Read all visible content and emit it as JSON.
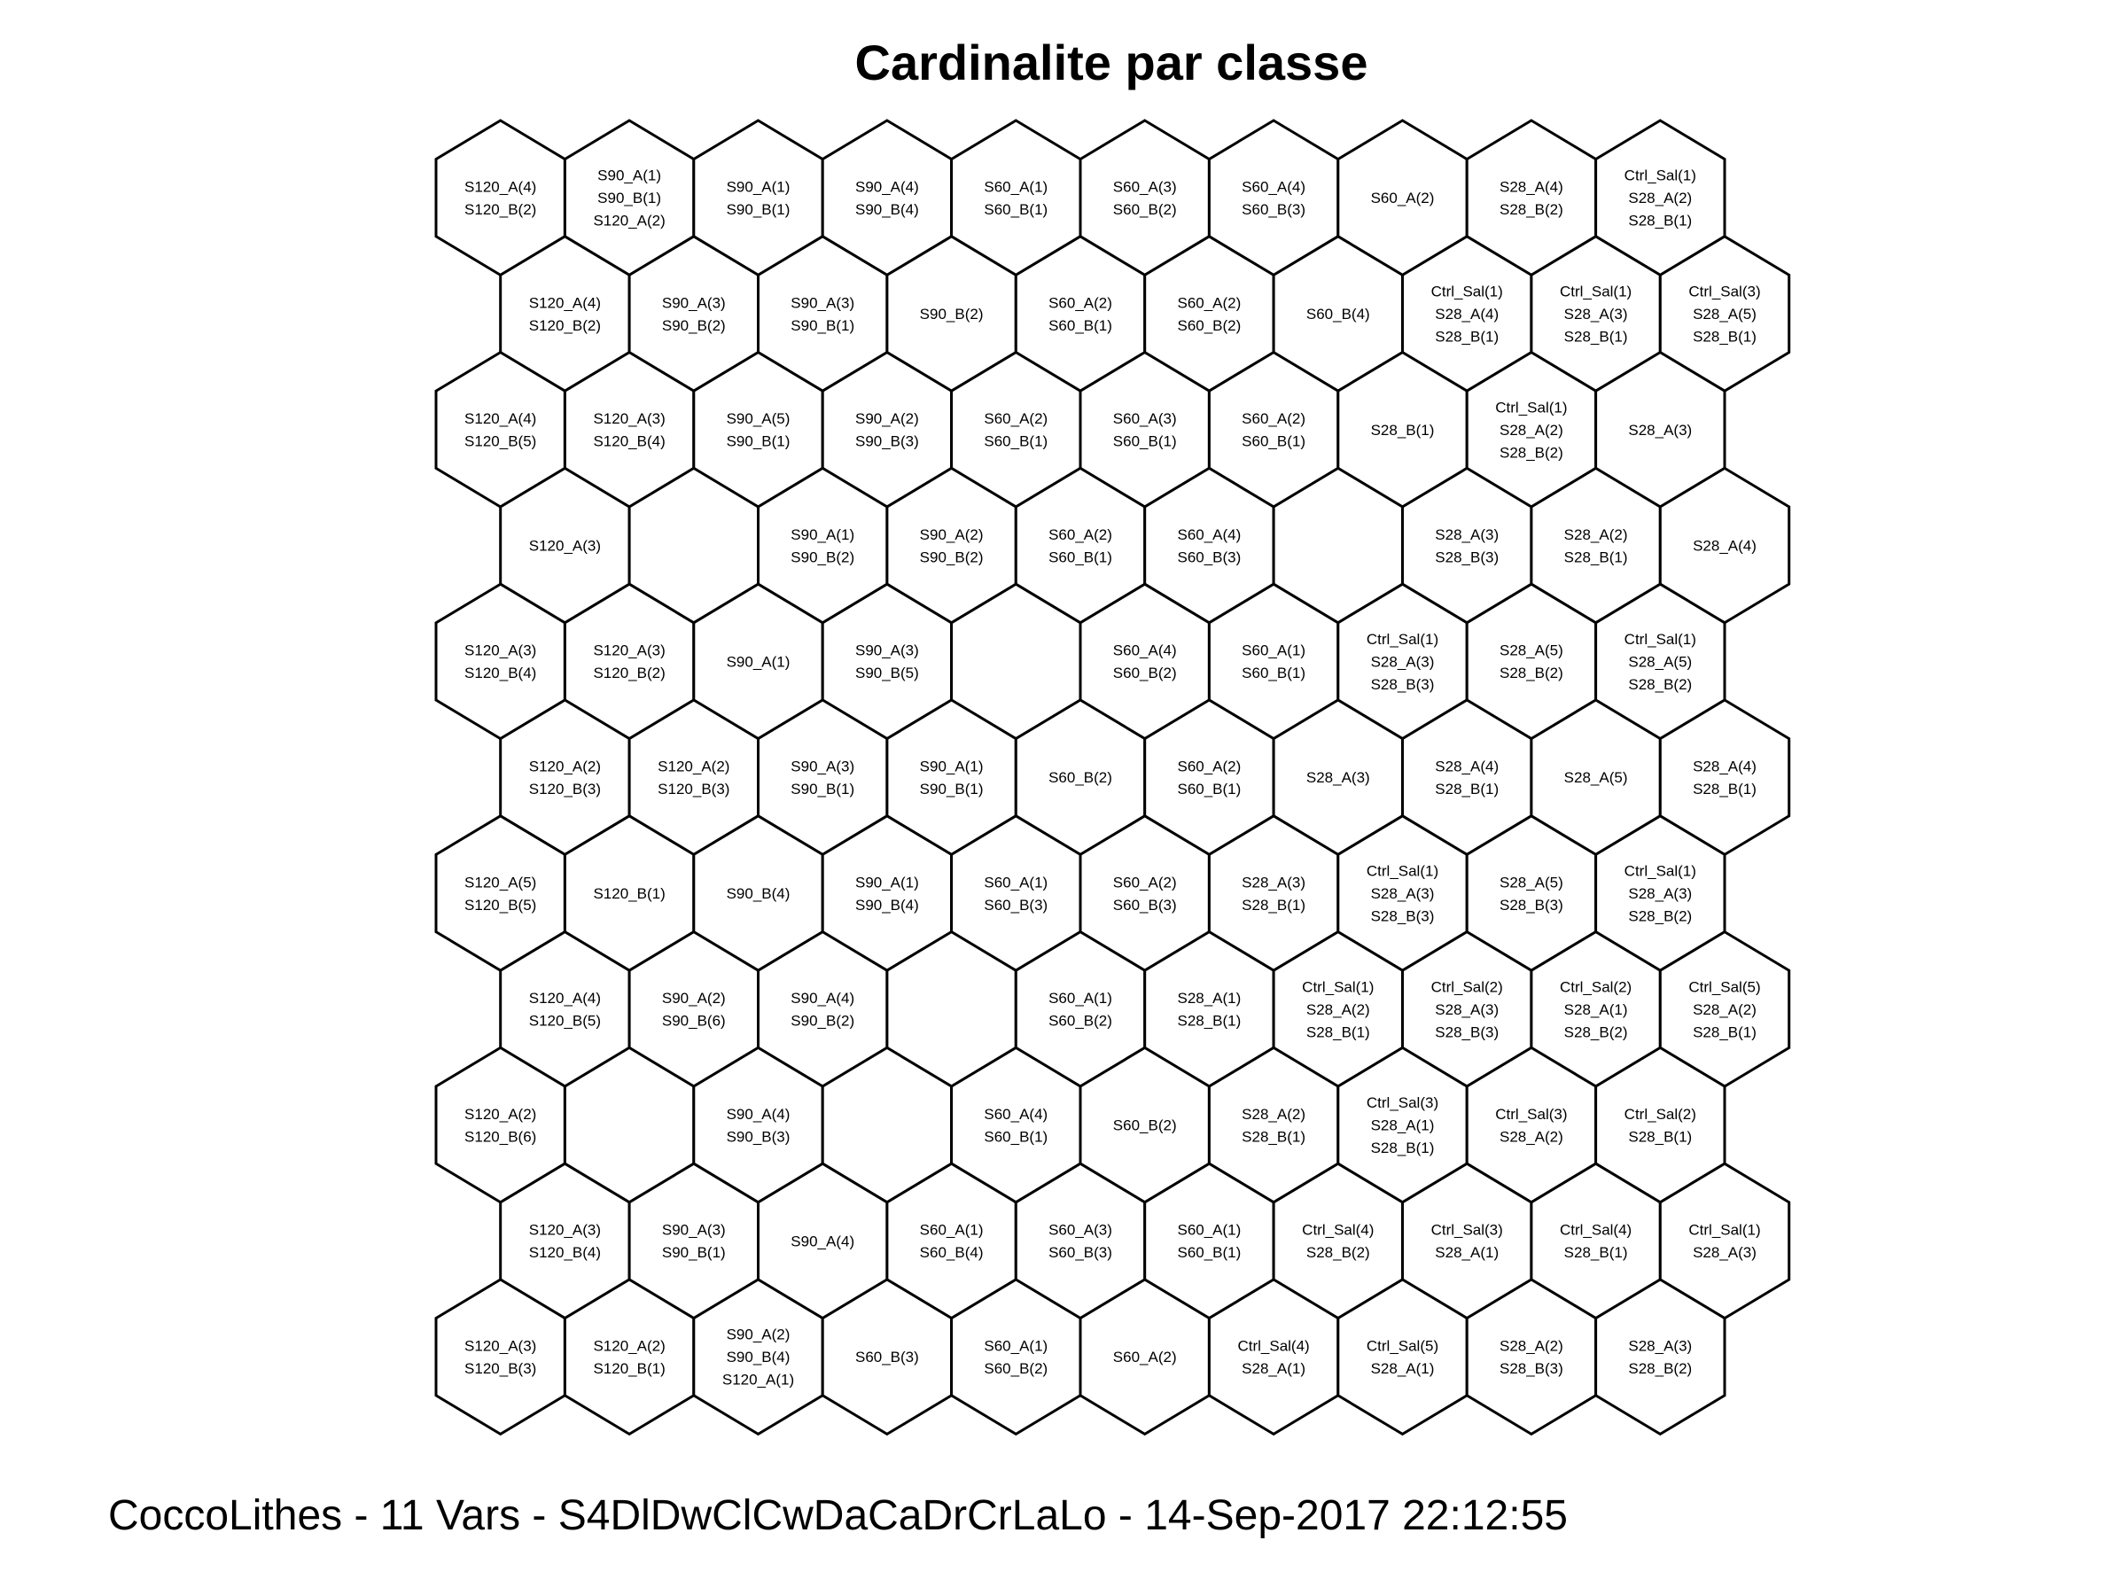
{
  "title": "Cardinalite par classe",
  "footer": "CoccoLithes - 11 Vars - S4DlDwClCwDaCaDrCrLaLo - 14-Sep-2017 22:12:55",
  "colors": {
    "stroke": "#000000",
    "fill": "#ffffff",
    "text": "#000000"
  },
  "grid": {
    "rows": 11,
    "cols": 10,
    "cells": [
      [
        [
          "S120_A(4)",
          "S120_B(2)"
        ],
        [
          "S90_A(1)",
          "S90_B(1)",
          "S120_A(2)"
        ],
        [
          "S90_A(1)",
          "S90_B(1)"
        ],
        [
          "S90_A(4)",
          "S90_B(4)"
        ],
        [
          "S60_A(1)",
          "S60_B(1)"
        ],
        [
          "S60_A(3)",
          "S60_B(2)"
        ],
        [
          "S60_A(4)",
          "S60_B(3)"
        ],
        [
          "S60_A(2)"
        ],
        [
          "S28_A(4)",
          "S28_B(2)"
        ],
        [
          "Ctrl_Sal(1)",
          "S28_A(2)",
          "S28_B(1)"
        ]
      ],
      [
        [
          "S120_A(4)",
          "S120_B(2)"
        ],
        [
          "S90_A(3)",
          "S90_B(2)"
        ],
        [
          "S90_A(3)",
          "S90_B(1)"
        ],
        [
          "S90_B(2)"
        ],
        [
          "S60_A(2)",
          "S60_B(1)"
        ],
        [
          "S60_A(2)",
          "S60_B(2)"
        ],
        [
          "S60_B(4)"
        ],
        [
          "Ctrl_Sal(1)",
          "S28_A(4)",
          "S28_B(1)"
        ],
        [
          "Ctrl_Sal(1)",
          "S28_A(3)",
          "S28_B(1)"
        ],
        [
          "Ctrl_Sal(3)",
          "S28_A(5)",
          "S28_B(1)"
        ]
      ],
      [
        [
          "S120_A(4)",
          "S120_B(5)"
        ],
        [
          "S120_A(3)",
          "S120_B(4)"
        ],
        [
          "S90_A(5)",
          "S90_B(1)"
        ],
        [
          "S90_A(2)",
          "S90_B(3)"
        ],
        [
          "S60_A(2)",
          "S60_B(1)"
        ],
        [
          "S60_A(3)",
          "S60_B(1)"
        ],
        [
          "S60_A(2)",
          "S60_B(1)"
        ],
        [
          "S28_B(1)"
        ],
        [
          "Ctrl_Sal(1)",
          "S28_A(2)",
          "S28_B(2)"
        ],
        [
          "S28_A(3)"
        ]
      ],
      [
        [
          "S120_A(3)"
        ],
        [],
        [
          "S90_A(1)",
          "S90_B(2)"
        ],
        [
          "S90_A(2)",
          "S90_B(2)"
        ],
        [
          "S60_A(2)",
          "S60_B(1)"
        ],
        [
          "S60_A(4)",
          "S60_B(3)"
        ],
        [],
        [
          "S28_A(3)",
          "S28_B(3)"
        ],
        [
          "S28_A(2)",
          "S28_B(1)"
        ],
        [
          "S28_A(4)"
        ]
      ],
      [
        [
          "S120_A(3)",
          "S120_B(4)"
        ],
        [
          "S120_A(3)",
          "S120_B(2)"
        ],
        [
          "S90_A(1)"
        ],
        [
          "S90_A(3)",
          "S90_B(5)"
        ],
        [],
        [
          "S60_A(4)",
          "S60_B(2)"
        ],
        [
          "S60_A(1)",
          "S60_B(1)"
        ],
        [
          "Ctrl_Sal(1)",
          "S28_A(3)",
          "S28_B(3)"
        ],
        [
          "S28_A(5)",
          "S28_B(2)"
        ],
        [
          "Ctrl_Sal(1)",
          "S28_A(5)",
          "S28_B(2)"
        ]
      ],
      [
        [
          "S120_A(2)",
          "S120_B(3)"
        ],
        [
          "S120_A(2)",
          "S120_B(3)"
        ],
        [
          "S90_A(3)",
          "S90_B(1)"
        ],
        [
          "S90_A(1)",
          "S90_B(1)"
        ],
        [
          "S60_B(2)"
        ],
        [
          "S60_A(2)",
          "S60_B(1)"
        ],
        [
          "S28_A(3)"
        ],
        [
          "S28_A(4)",
          "S28_B(1)"
        ],
        [
          "S28_A(5)"
        ],
        [
          "S28_A(4)",
          "S28_B(1)"
        ]
      ],
      [
        [
          "S120_A(5)",
          "S120_B(5)"
        ],
        [
          "S120_B(1)"
        ],
        [
          "S90_B(4)"
        ],
        [
          "S90_A(1)",
          "S90_B(4)"
        ],
        [
          "S60_A(1)",
          "S60_B(3)"
        ],
        [
          "S60_A(2)",
          "S60_B(3)"
        ],
        [
          "S28_A(3)",
          "S28_B(1)"
        ],
        [
          "Ctrl_Sal(1)",
          "S28_A(3)",
          "S28_B(3)"
        ],
        [
          "S28_A(5)",
          "S28_B(3)"
        ],
        [
          "Ctrl_Sal(1)",
          "S28_A(3)",
          "S28_B(2)"
        ]
      ],
      [
        [
          "S120_A(4)",
          "S120_B(5)"
        ],
        [
          "S90_A(2)",
          "S90_B(6)"
        ],
        [
          "S90_A(4)",
          "S90_B(2)"
        ],
        [],
        [
          "S60_A(1)",
          "S60_B(2)"
        ],
        [
          "S28_A(1)",
          "S28_B(1)"
        ],
        [
          "Ctrl_Sal(1)",
          "S28_A(2)",
          "S28_B(1)"
        ],
        [
          "Ctrl_Sal(2)",
          "S28_A(3)",
          "S28_B(3)"
        ],
        [
          "Ctrl_Sal(2)",
          "S28_A(1)",
          "S28_B(2)"
        ],
        [
          "Ctrl_Sal(5)",
          "S28_A(2)",
          "S28_B(1)"
        ]
      ],
      [
        [
          "S120_A(2)",
          "S120_B(6)"
        ],
        [],
        [
          "S90_A(4)",
          "S90_B(3)"
        ],
        [],
        [
          "S60_A(4)",
          "S60_B(1)"
        ],
        [
          "S60_B(2)"
        ],
        [
          "S28_A(2)",
          "S28_B(1)"
        ],
        [
          "Ctrl_Sal(3)",
          "S28_A(1)",
          "S28_B(1)"
        ],
        [
          "Ctrl_Sal(3)",
          "S28_A(2)"
        ],
        [
          "Ctrl_Sal(2)",
          "S28_B(1)"
        ]
      ],
      [
        [
          "S120_A(3)",
          "S120_B(4)"
        ],
        [
          "S90_A(3)",
          "S90_B(1)"
        ],
        [
          "S90_A(4)"
        ],
        [
          "S60_A(1)",
          "S60_B(4)"
        ],
        [
          "S60_A(3)",
          "S60_B(3)"
        ],
        [
          "S60_A(1)",
          "S60_B(1)"
        ],
        [
          "Ctrl_Sal(4)",
          "S28_B(2)"
        ],
        [
          "Ctrl_Sal(3)",
          "S28_A(1)"
        ],
        [
          "Ctrl_Sal(4)",
          "S28_B(1)"
        ],
        [
          "Ctrl_Sal(1)",
          "S28_A(3)"
        ]
      ],
      [
        [
          "S120_A(3)",
          "S120_B(3)"
        ],
        [
          "S120_A(2)",
          "S120_B(1)"
        ],
        [
          "S90_A(2)",
          "S90_B(4)",
          "S120_A(1)"
        ],
        [
          "S60_B(3)"
        ],
        [
          "S60_A(1)",
          "S60_B(2)"
        ],
        [
          "S60_A(2)"
        ],
        [
          "Ctrl_Sal(4)",
          "S28_A(1)"
        ],
        [
          "Ctrl_Sal(5)",
          "S28_A(1)"
        ],
        [
          "S28_A(2)",
          "S28_B(3)"
        ],
        [
          "S28_A(3)",
          "S28_B(2)"
        ]
      ]
    ]
  }
}
